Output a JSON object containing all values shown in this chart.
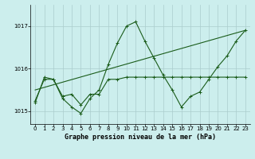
{
  "title": "Graphe pression niveau de la mer (hPa)",
  "background_color": "#cceeed",
  "grid_color": "#aacccc",
  "line_color": "#1a5c1a",
  "xlim": [
    -0.5,
    23.5
  ],
  "ylim": [
    1014.7,
    1017.5
  ],
  "yticks": [
    1015,
    1016,
    1017
  ],
  "xticks": [
    0,
    1,
    2,
    3,
    4,
    5,
    6,
    7,
    8,
    9,
    10,
    11,
    12,
    13,
    14,
    15,
    16,
    17,
    18,
    19,
    20,
    21,
    22,
    23
  ],
  "series_jagged": {
    "x": [
      0,
      1,
      2,
      3,
      4,
      5,
      6,
      7,
      8,
      9,
      10,
      11,
      12,
      13,
      14,
      15,
      16,
      17,
      18,
      19,
      20,
      21,
      22,
      23
    ],
    "y": [
      1015.2,
      1015.8,
      1015.75,
      1015.3,
      1015.1,
      1014.95,
      1015.3,
      1015.5,
      1016.1,
      1016.6,
      1017.0,
      1017.1,
      1016.65,
      1016.25,
      1015.85,
      1015.5,
      1015.1,
      1015.35,
      1015.45,
      1015.75,
      1016.05,
      1016.3,
      1016.65,
      1016.9
    ]
  },
  "series_flat": {
    "x": [
      0,
      1,
      2,
      3,
      4,
      5,
      6,
      7,
      8,
      9,
      10,
      11,
      12,
      13,
      14,
      15,
      16,
      17,
      18,
      19,
      20,
      21,
      22,
      23
    ],
    "y": [
      1015.25,
      1015.75,
      1015.75,
      1015.35,
      1015.4,
      1015.15,
      1015.4,
      1015.4,
      1015.75,
      1015.75,
      1015.8,
      1015.8,
      1015.8,
      1015.8,
      1015.8,
      1015.8,
      1015.8,
      1015.8,
      1015.8,
      1015.8,
      1015.8,
      1015.8,
      1015.8,
      1015.8
    ]
  },
  "series_trend": {
    "x": [
      0,
      23
    ],
    "y": [
      1015.5,
      1016.9
    ]
  }
}
